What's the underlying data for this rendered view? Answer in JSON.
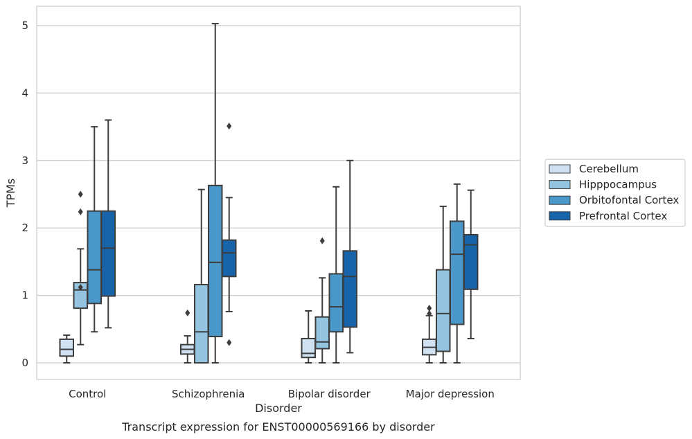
{
  "chart_data": {
    "type": "box",
    "title": "Transcript expression for ENST00000569166 by disorder",
    "xlabel": "Disorder",
    "ylabel": "TPMs",
    "ylim": [
      -0.25,
      5.3
    ],
    "yticks": [
      0,
      1,
      2,
      3,
      4,
      5
    ],
    "grid": true,
    "legend_position": "right",
    "categories": [
      "Control",
      "Schizophrenia",
      "Bipolar disorder",
      "Major depression"
    ],
    "series": [
      {
        "name": "Cerebellum",
        "color": "#d0e1f2",
        "boxes": [
          {
            "whislo": 0.0,
            "q1": 0.1,
            "med": 0.2,
            "q3": 0.35,
            "whishi": 0.41,
            "fliers": []
          },
          {
            "whislo": 0.0,
            "q1": 0.13,
            "med": 0.2,
            "q3": 0.27,
            "whishi": 0.4,
            "fliers": [
              0.74
            ]
          },
          {
            "whislo": 0.0,
            "q1": 0.08,
            "med": 0.14,
            "q3": 0.36,
            "whishi": 0.77,
            "fliers": []
          },
          {
            "whislo": 0.0,
            "q1": 0.12,
            "med": 0.23,
            "q3": 0.35,
            "whishi": 0.7,
            "fliers": [
              0.73,
              0.81
            ]
          }
        ]
      },
      {
        "name": "Hipppocampus",
        "color": "#94c4df",
        "boxes": [
          {
            "whislo": 0.27,
            "q1": 0.81,
            "med": 1.08,
            "q3": 1.19,
            "whishi": 1.69,
            "fliers": [
              1.12,
              2.24,
              2.5
            ]
          },
          {
            "whislo": 0.0,
            "q1": 0.0,
            "med": 0.46,
            "q3": 1.16,
            "whishi": 2.57,
            "fliers": []
          },
          {
            "whislo": 0.0,
            "q1": 0.21,
            "med": 0.31,
            "q3": 0.68,
            "whishi": 1.26,
            "fliers": [
              1.81
            ]
          },
          {
            "whislo": 0.0,
            "q1": 0.17,
            "med": 0.73,
            "q3": 1.38,
            "whishi": 2.32,
            "fliers": []
          }
        ]
      },
      {
        "name": "Orbitofontal Cortex",
        "color": "#4a98c9",
        "boxes": [
          {
            "whislo": 0.46,
            "q1": 0.88,
            "med": 1.38,
            "q3": 2.25,
            "whishi": 3.5,
            "fliers": []
          },
          {
            "whislo": 0.0,
            "q1": 0.39,
            "med": 1.49,
            "q3": 2.63,
            "whishi": 5.03,
            "fliers": []
          },
          {
            "whislo": 0.0,
            "q1": 0.46,
            "med": 0.83,
            "q3": 1.32,
            "whishi": 2.61,
            "fliers": []
          },
          {
            "whislo": 0.0,
            "q1": 0.57,
            "med": 1.61,
            "q3": 2.1,
            "whishi": 2.65,
            "fliers": []
          }
        ]
      },
      {
        "name": "Prefrontal Cortex",
        "color": "#1764ab",
        "boxes": [
          {
            "whislo": 0.52,
            "q1": 0.99,
            "med": 1.7,
            "q3": 2.25,
            "whishi": 3.6,
            "fliers": []
          },
          {
            "whislo": 0.76,
            "q1": 1.28,
            "med": 1.63,
            "q3": 1.82,
            "whishi": 2.45,
            "fliers": [
              0.3,
              3.51
            ]
          },
          {
            "whislo": 0.15,
            "q1": 0.53,
            "med": 1.28,
            "q3": 1.66,
            "whishi": 3.0,
            "fliers": []
          },
          {
            "whislo": 0.36,
            "q1": 1.09,
            "med": 1.75,
            "q3": 1.9,
            "whishi": 2.56,
            "fliers": []
          }
        ]
      }
    ]
  }
}
